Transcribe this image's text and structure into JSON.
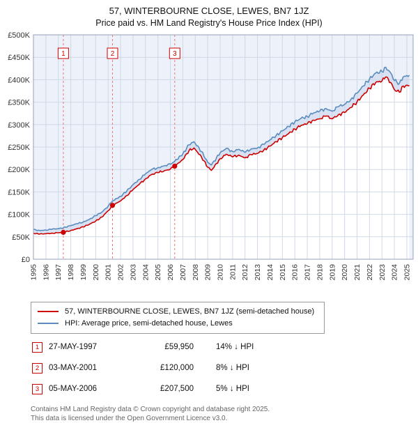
{
  "title": "57, WINTERBOURNE CLOSE, LEWES, BN7 1JZ",
  "subtitle": "Price paid vs. HM Land Registry's House Price Index (HPI)",
  "chart_data": {
    "type": "line",
    "x": [
      1995.0,
      1995.5,
      1996.0,
      1996.5,
      1997.0,
      1997.4,
      1998.0,
      1998.5,
      1999.0,
      1999.5,
      2000.0,
      2000.5,
      2001.0,
      2001.35,
      2002.0,
      2002.5,
      2003.0,
      2003.5,
      2004.0,
      2004.5,
      2005.0,
      2005.5,
      2006.0,
      2006.35,
      2007.0,
      2007.5,
      2007.9,
      2008.5,
      2009.0,
      2009.3,
      2010.0,
      2010.5,
      2011.0,
      2011.5,
      2012.0,
      2012.5,
      2013.0,
      2013.5,
      2014.0,
      2014.5,
      2015.0,
      2015.5,
      2016.0,
      2016.5,
      2017.0,
      2017.5,
      2018.0,
      2018.5,
      2019.0,
      2019.5,
      2020.0,
      2020.5,
      2021.0,
      2021.5,
      2022.0,
      2022.5,
      2023.0,
      2023.3,
      2023.7,
      2024.0,
      2024.4,
      2024.7,
      2025.2
    ],
    "series": [
      {
        "name": "57, WINTERBOURNE CLOSE, LEWES, BN7 1JZ (semi-detached house)",
        "color": "#cc0000",
        "values": [
          58,
          56,
          57,
          58,
          59,
          59.95,
          64,
          68,
          72,
          78,
          85,
          94,
          108,
          120,
          130,
          142,
          155,
          167,
          179,
          189,
          193,
          197,
          201,
          207.5,
          222,
          242,
          248,
          228,
          205,
          198,
          224,
          234,
          228,
          232,
          226,
          233,
          236,
          243,
          252,
          262,
          271,
          280,
          290,
          298,
          302,
          310,
          313,
          319,
          313,
          322,
          327,
          338,
          351,
          366,
          381,
          394,
          397,
          406,
          394,
          378,
          372,
          386,
          387
        ]
      },
      {
        "name": "HPI: Average price, semi-detached house, Lewes",
        "color": "#5b8cbe",
        "values": [
          66,
          64,
          65,
          67,
          68,
          70,
          75,
          79,
          83,
          89,
          97,
          105,
          118,
          130,
          140,
          152,
          166,
          178,
          190,
          200,
          204,
          208,
          212,
          218,
          235,
          255,
          262,
          240,
          216,
          210,
          237,
          247,
          240,
          245,
          238,
          246,
          248,
          256,
          266,
          276,
          286,
          296,
          306,
          314,
          318,
          326,
          330,
          336,
          330,
          340,
          345,
          356,
          370,
          386,
          402,
          415,
          418,
          428,
          415,
          398,
          392,
          406,
          410
        ]
      }
    ],
    "ylim": [
      0,
      500
    ],
    "yticks": [
      {
        "v": 0,
        "label": "£0"
      },
      {
        "v": 50,
        "label": "£50K"
      },
      {
        "v": 100,
        "label": "£100K"
      },
      {
        "v": 150,
        "label": "£150K"
      },
      {
        "v": 200,
        "label": "£200K"
      },
      {
        "v": 250,
        "label": "£250K"
      },
      {
        "v": 300,
        "label": "£300K"
      },
      {
        "v": 350,
        "label": "£350K"
      },
      {
        "v": 400,
        "label": "£400K"
      },
      {
        "v": 450,
        "label": "£450K"
      },
      {
        "v": 500,
        "label": "£500K"
      }
    ],
    "xticks": [
      1995,
      1996,
      1997,
      1998,
      1999,
      2000,
      2001,
      2002,
      2003,
      2004,
      2005,
      2006,
      2007,
      2008,
      2009,
      2010,
      2011,
      2012,
      2013,
      2014,
      2015,
      2016,
      2017,
      2018,
      2019,
      2020,
      2021,
      2022,
      2023,
      2024,
      2025
    ],
    "sales": [
      {
        "n": "1",
        "year": 1997.4,
        "price": 59.95
      },
      {
        "n": "2",
        "year": 2001.35,
        "price": 120
      },
      {
        "n": "3",
        "year": 2006.35,
        "price": 207.5
      }
    ],
    "grid": true,
    "legend_position": "bottom",
    "colors": {
      "plot_bg": "#edf1f9",
      "fill_under_hpi": "#d8e2f2",
      "fill_under_price": "#ffffff",
      "grid": "#c9d3e2",
      "border": "#93a1b8",
      "sale_line": "#e57878",
      "marker": "#cc0000",
      "axis_text": "#333333"
    }
  },
  "transactions": [
    {
      "num": "1",
      "date": "27-MAY-1997",
      "price": "£59,950",
      "hpi": "14% ↓ HPI"
    },
    {
      "num": "2",
      "date": "03-MAY-2001",
      "price": "£120,000",
      "hpi": "8% ↓ HPI"
    },
    {
      "num": "3",
      "date": "05-MAY-2006",
      "price": "£207,500",
      "hpi": "5% ↓ HPI"
    }
  ],
  "footer": {
    "line1": "Contains HM Land Registry data © Crown copyright and database right 2025.",
    "line2": "This data is licensed under the Open Government Licence v3.0."
  }
}
